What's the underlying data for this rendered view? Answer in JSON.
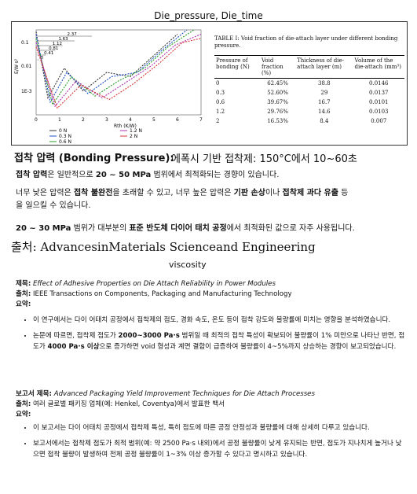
{
  "header": {
    "title": "Die_pressure, Die_time"
  },
  "figure": {
    "plot": {
      "y_unit": "E/W·s²",
      "x_label": "Rth (K/W)",
      "y_ticks": [
        "0.1",
        "0.01",
        "1E-3"
      ],
      "x_ticks": [
        "0",
        "1",
        "2",
        "3",
        "4",
        "5",
        "6",
        "7"
      ],
      "dims": [
        "2.37",
        "1.63",
        "1.12",
        "0.81",
        "0.41",
        "0"
      ],
      "legend": [
        "0 N",
        "0.3 N",
        "0.6 N",
        "1.2 N",
        "2 N"
      ],
      "colors": [
        "#333333",
        "#1f4fc8",
        "#2a9d2a",
        "#b030b0",
        "#d93636"
      ]
    },
    "table": {
      "title": "TABLE I: Void fraction of die-attach layer under different bonding pressure.",
      "headers": [
        "Pressure of bonding (N)",
        "Void fraction (%)",
        "Thickness of die-attach layer (m)",
        "Volume of the die-attach (mm³)"
      ],
      "rows": [
        [
          "0",
          "62.45%",
          "38.8",
          "0.0146"
        ],
        [
          "0.3",
          "52.60%",
          "29",
          "0.0137"
        ],
        [
          "0.6",
          "39.67%",
          "16.7",
          "0.0101"
        ],
        [
          "1.2",
          "29.76%",
          "14.6",
          "0.0103"
        ],
        [
          "2",
          "16.53%",
          "8.4",
          "0.007"
        ]
      ]
    }
  },
  "bonding": {
    "heading": "접착 압력 (Bonding Pressure):",
    "heading_right": "에폭시 기반 접착제: 150°C에서 10~60초",
    "p1_a": "접착 압력",
    "p1_b": "은 일반적으로 ",
    "p1_c": "20 ~ 50 MPa",
    "p1_d": " 범위에서 최적화되는 경향이 있습니다.",
    "p2_a": "너무 낮은 압력은 ",
    "p2_b": "접착 불완전",
    "p2_c": "을 초래할 수 있고, 너무 높은 압력은 ",
    "p2_d": "기판 손상",
    "p2_e": "이나 ",
    "p2_f": "접착제 과다 유출",
    "p2_g": " 등",
    "p2_h": "을 일으킬 수 있습니다.",
    "p3_a": "20 ~ 30 MPa",
    "p3_b": " 범위가 대부분의 ",
    "p3_c": "표준 반도체 다이어 태치 공정",
    "p3_d": "에서 최적화된 값으로 자주 사용됩니다."
  },
  "source": "출처: AdvancesinMaterials Scienceand Engineering",
  "viscosity_label": "viscosity",
  "paper1": {
    "title_label": "제목:",
    "title": "Effect of Adhesive Properties on Die Attach Reliability in Power Modules",
    "source_label": "출처:",
    "source": "IEEE Transactions on Components, Packaging and Manufacturing Technology",
    "summary_label": "요약:",
    "b1": "이 연구에서는 다이 어태치 공정에서 접착제의 점도, 경화 속도, 온도 등이 접착 강도와 불량률에 미치는 영향을 분석하였습니다.",
    "b2_a": "논문에 따르면, 접착제 점도가 ",
    "b2_b": "2000~3000 Pa·s",
    "b2_c": " 범위일 때 최적의 접착 특성이 확보되어 불량률이 1% 미만으로 나타난 반면, 점도가 ",
    "b2_d": "4000 Pa·s 이상",
    "b2_e": "으로 증가하면 void 형성과 계면 결함이 급증하여 불량률이 4~5%까지 상승하는 경향이 보고되었습니다."
  },
  "paper2": {
    "title_label": "보고서 제목:",
    "title": "Advanced Packaging Yield Improvement Techniques for Die Attach Processes",
    "source_label": "출처:",
    "source": "여러 글로벌 패키징 업체(예: Henkel, Coventya)에서 발표한 백서",
    "summary_label": "요약:",
    "b1": "이 보고서는 다이 어태치 공정에서 접착제 특성, 특히 점도에 따른 공정 안정성과 불량률에 대해 상세히 다루고 있습니다.",
    "b2": "보고서에서는 접착제 점도가 최적 범위(예: 약 2500 Pa·s 내외)에서 공정 불량률이 낮게 유지되는 반면, 점도가 지나치게 높거나 낮으면 접착 불량이 발생하여 전체 공정 불량률이 1~3% 이상 증가할 수 있다고 명시하고 있습니다."
  }
}
